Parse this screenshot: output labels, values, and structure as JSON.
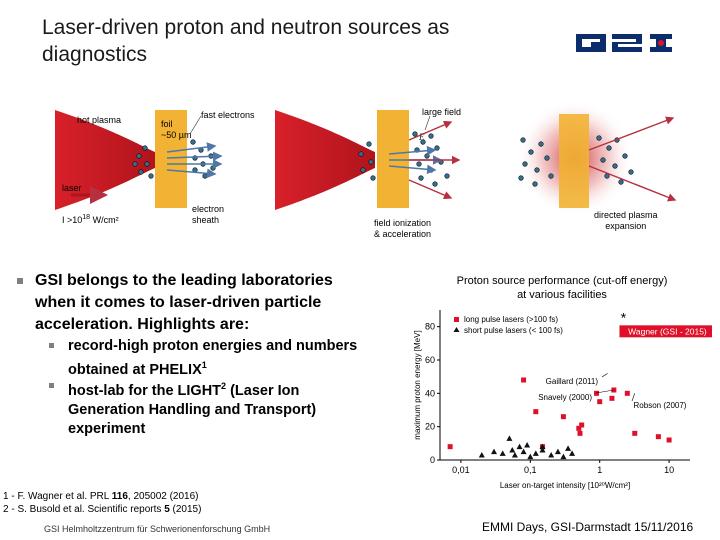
{
  "slide": {
    "title_line1": "Laser-driven proton and neutron sources as",
    "title_line2": "diagnostics",
    "logo_text": "GSI"
  },
  "diagram": {
    "hot_plasma": "hot plasma",
    "foil_line1": "foil",
    "foil_line2": "~50 µm",
    "fast_electrons": "fast electrons",
    "large_field": "large field",
    "field_symbol": "E",
    "laser": "laser",
    "intensity": "I >10",
    "intensity_exp": "18",
    "intensity_unit": " W/cm²",
    "electron_line1": "electron",
    "electron_line2": "sheath",
    "ionization_line1": "field ionization",
    "ionization_line2": "& acceleration",
    "directed_line1": "directed plasma",
    "directed_line2": "expansion"
  },
  "bullets": {
    "main_line1": "GSI belongs to the leading laboratories",
    "main_line2": "when it comes to laser-driven particle",
    "main_line3": "acceleration. Highlights are:",
    "sub1_line1": "record-high proton energies and numbers",
    "sub1_line2": "obtained at PHELIX",
    "sub1_sup": "1",
    "sub2_line1": "host-lab for the LIGHT",
    "sub2_sup": "2",
    "sub2_line1b": " (Laser Ion",
    "sub2_line2": "Generation Handling and Transport)",
    "sub2_line3": "experiment"
  },
  "chart_data": {
    "type": "scatter",
    "title_line1": "Proton source performance (cut-off energy)",
    "title_line2": "at various facilities",
    "ylabel": "maximum proton energy [MeV]",
    "xlabel": "Laser on-target intensity [10²⁰W/cm²]",
    "x_scale": "log",
    "xlim": [
      0.005,
      20
    ],
    "ylim": [
      0,
      90
    ],
    "x_ticks": [
      {
        "v": 0.01,
        "label": "0,01"
      },
      {
        "v": 0.1,
        "label": "0,1"
      },
      {
        "v": 1,
        "label": "1"
      },
      {
        "v": 10,
        "label": "10"
      }
    ],
    "y_ticks": [
      {
        "v": 0,
        "label": "0"
      },
      {
        "v": 20,
        "label": "20"
      },
      {
        "v": 40,
        "label": "40"
      },
      {
        "v": 60,
        "label": "60"
      },
      {
        "v": 80,
        "label": "80"
      }
    ],
    "legend": {
      "long": "long pulse lasers  (>100 fs)",
      "short": "short pulse lasers (< 100 fs)"
    },
    "series": [
      {
        "name": "long pulse lasers  (>100 fs)",
        "marker": "square",
        "color": "#e0102a",
        "points": [
          [
            0.007,
            8
          ],
          [
            0.08,
            48
          ],
          [
            0.12,
            29
          ],
          [
            0.3,
            26
          ],
          [
            0.5,
            19
          ],
          [
            0.52,
            16
          ],
          [
            0.55,
            21
          ],
          [
            0.9,
            40
          ],
          [
            1.0,
            35
          ],
          [
            1.5,
            37
          ],
          [
            1.6,
            42
          ],
          [
            2.5,
            40
          ],
          [
            3.2,
            16
          ],
          [
            7,
            14
          ],
          [
            10,
            12
          ],
          [
            0.15,
            8
          ]
        ]
      },
      {
        "name": "short pulse lasers (< 100 fs)",
        "marker": "triangle",
        "color": "#111111",
        "points": [
          [
            0.02,
            3
          ],
          [
            0.03,
            5
          ],
          [
            0.04,
            4
          ],
          [
            0.05,
            13
          ],
          [
            0.055,
            6
          ],
          [
            0.06,
            3
          ],
          [
            0.07,
            8
          ],
          [
            0.08,
            5
          ],
          [
            0.09,
            9
          ],
          [
            0.1,
            2
          ],
          [
            0.12,
            4
          ],
          [
            0.15,
            6
          ],
          [
            0.2,
            3
          ],
          [
            0.25,
            5
          ],
          [
            0.3,
            2
          ],
          [
            0.4,
            4
          ],
          [
            0.15,
            8
          ],
          [
            0.35,
            7
          ]
        ]
      }
    ],
    "highlight": {
      "x": 2.2,
      "y": 85,
      "label": "Wagner (GSI - 2015)",
      "color": "#e0102a"
    },
    "annotations": [
      {
        "label": "Gaillard (2011)",
        "x": 1.3,
        "y": 52
      },
      {
        "label": "Snavely (2000)",
        "x": 1.6,
        "y": 42
      },
      {
        "label": "Robson (2007)",
        "x": 3.2,
        "y": 40
      }
    ]
  },
  "references": {
    "ref1_pre": "1 - F. Wagner et al. PRL ",
    "ref1_vol": "116",
    "ref1_post": ", 205002 (2016)",
    "ref2_pre": "2 - S. Busold et al. Scientific reports ",
    "ref2_vol": "5",
    "ref2_post": " (2015)"
  },
  "footer": {
    "left": "GSI Helmholtzzentrum für Schwerionenforschung GmbH",
    "right": "EMMI Days, GSI-Darmstadt 15/11/2016"
  },
  "colors": {
    "laser_red": "#d8202a",
    "foil": "#f2b233",
    "electron_blue": "#4f78a8",
    "plasma_red": "#c8323a",
    "accent_red": "#e0102a"
  }
}
